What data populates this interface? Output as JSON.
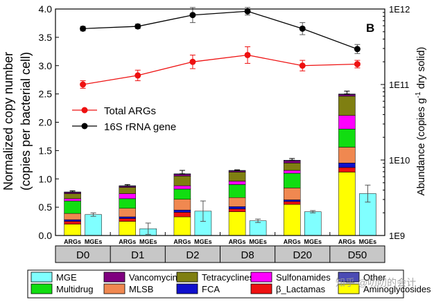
{
  "chart_data": {
    "type": "bar",
    "subtype": "stacked bar with dual-axis lines",
    "panel_label": "B",
    "ylabel_left": "Normalized copy number",
    "ylabel_left_line2": "(copies per bacterial cell)",
    "ylabel_right": "Abundance (copies g",
    "ylabel_right_sup": "-1",
    "ylabel_right_tail": " dry solid)",
    "ylim_left": [
      0,
      4.0
    ],
    "yticks_left": [
      "0.0",
      "0.5",
      "1.0",
      "1.5",
      "2.0",
      "2.5",
      "3.0",
      "3.5",
      "4.0"
    ],
    "ytick_values_left": [
      0,
      0.5,
      1.0,
      1.5,
      2.0,
      2.5,
      3.0,
      3.5,
      4.0
    ],
    "ylim_right_log10": [
      9,
      12
    ],
    "yticks_right": [
      "1E9",
      "1E10",
      "1E11",
      "1E12"
    ],
    "ytick_values_right_log10": [
      9,
      10,
      11,
      12
    ],
    "groups": [
      "D0",
      "D1",
      "D2",
      "D8",
      "D20",
      "D50"
    ],
    "bar_sublabels": [
      "ARGs",
      "MGEs"
    ],
    "arg_classes": [
      {
        "name": "Aminoglycosides",
        "color": "#ffff00"
      },
      {
        "name": "β_Lactamas",
        "color": "#ee1111"
      },
      {
        "name": "FCA",
        "color": "#1010cc"
      },
      {
        "name": "MLSB",
        "color": "#f08850"
      },
      {
        "name": "Multidrug",
        "color": "#11dd11"
      },
      {
        "name": "Sulfonamides",
        "color": "#ff00ff"
      },
      {
        "name": "Tetracyclines",
        "color": "#7f7f11"
      },
      {
        "name": "Vancomycin",
        "color": "#7f007f"
      },
      {
        "name": "Other",
        "color": "#4b4bb4"
      }
    ],
    "arg_stack_values": [
      [
        0.2,
        0.05,
        0.03,
        0.11,
        0.22,
        0.04,
        0.09,
        0.02,
        0.01
      ],
      [
        0.25,
        0.05,
        0.03,
        0.15,
        0.17,
        0.09,
        0.11,
        0.02,
        0.01
      ],
      [
        0.33,
        0.08,
        0.04,
        0.19,
        0.18,
        0.06,
        0.17,
        0.03,
        0.01
      ],
      [
        0.42,
        0.05,
        0.04,
        0.16,
        0.23,
        0.06,
        0.16,
        0.02,
        0.01
      ],
      [
        0.55,
        0.05,
        0.03,
        0.21,
        0.26,
        0.05,
        0.13,
        0.04,
        0.01
      ],
      [
        1.12,
        0.08,
        0.08,
        0.28,
        0.32,
        0.24,
        0.34,
        0.03,
        0.01
      ]
    ],
    "arg_totals": [
      0.77,
      0.88,
      1.09,
      1.15,
      1.33,
      2.5
    ],
    "arg_error": [
      0.02,
      0.02,
      0.06,
      0.01,
      0.03,
      0.05
    ],
    "mge": {
      "name": "MGE",
      "color": "#80ffff",
      "values": [
        0.37,
        0.12,
        0.43,
        0.26,
        0.42,
        0.74
      ],
      "error": [
        0.03,
        0.1,
        0.18,
        0.03,
        0.02,
        0.15
      ]
    },
    "line_series": [
      {
        "name": "Total ARGs",
        "axis": "right",
        "color": "#ee1111",
        "values_log10": [
          11.0,
          11.12,
          11.3,
          11.39,
          11.25,
          11.27
        ],
        "error_log10": [
          0.05,
          0.07,
          0.09,
          0.11,
          0.07,
          0.05
        ]
      },
      {
        "name": "16S rRNA gene",
        "axis": "right",
        "color": "#000000",
        "values_log10": [
          11.74,
          11.77,
          11.92,
          11.97,
          11.74,
          11.47
        ],
        "error_log10": [
          0.03,
          0.03,
          0.1,
          0.05,
          0.08,
          0.06
        ]
      }
    ],
    "line_legend_position": "upper-left",
    "bottom_legend": [
      {
        "name": "MGE",
        "color": "#80ffff"
      },
      {
        "name": "Vancomycin",
        "color": "#7f007f"
      },
      {
        "name": "Tetracyclines",
        "color": "#7f7f11"
      },
      {
        "name": "Sulfonamides",
        "color": "#ff00ff"
      },
      {
        "name": "Other",
        "color": "#4b4bb4"
      },
      {
        "name": "Multidrug",
        "color": "#11dd11"
      },
      {
        "name": "MLSB",
        "color": "#f08850"
      },
      {
        "name": "FCA",
        "color": "#1010cc"
      },
      {
        "name": "β_Lactamas",
        "color": "#ee1111"
      },
      {
        "name": "Aminoglycosides",
        "color": "#ffff00"
      }
    ],
    "watermark": "知乎 @叨叨的会计"
  }
}
